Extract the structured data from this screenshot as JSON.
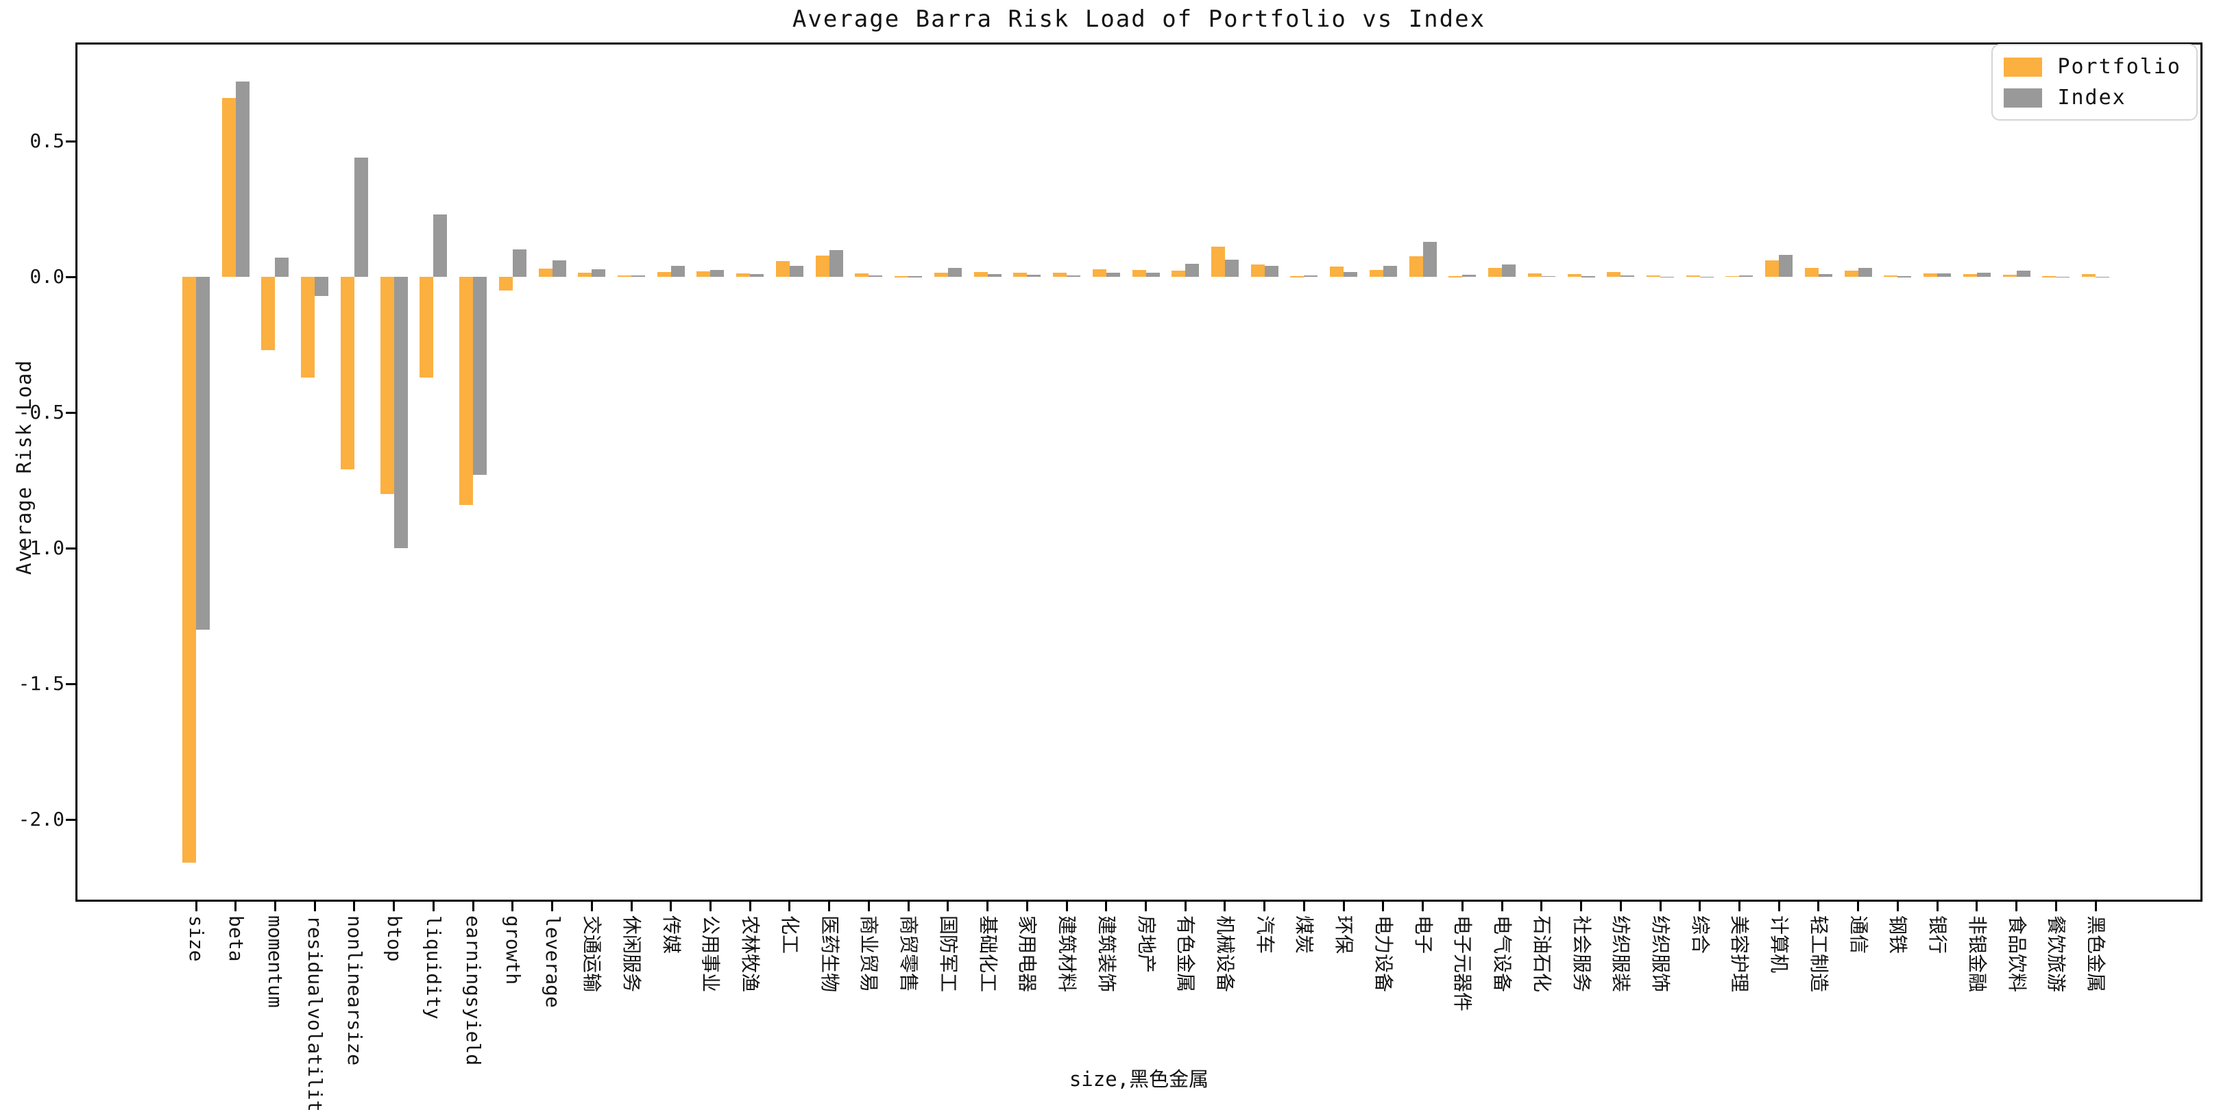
{
  "title": "Average Barra Risk Load of Portfolio vs Index",
  "legend": {
    "items": [
      {
        "label": "Portfolio",
        "color": "#FBB040"
      },
      {
        "label": "Index",
        "color": "#999999"
      }
    ]
  },
  "chart_data": {
    "type": "bar",
    "title": "Average Barra Risk Load of Portfolio vs Index",
    "xlabel": "size,黑色金属",
    "ylabel": "Average Risk Load",
    "ylim": [
      -2.3,
      0.865
    ],
    "grid": false,
    "legend_position": "upper right",
    "yticks": [
      {
        "v": 0.5,
        "label": "0.5"
      },
      {
        "v": 0.0,
        "label": "0.0"
      },
      {
        "v": -0.5,
        "label": "-0.5"
      },
      {
        "v": -1.0,
        "label": "-1.0"
      },
      {
        "v": -1.5,
        "label": "-1.5"
      },
      {
        "v": -2.0,
        "label": "-2.0"
      }
    ],
    "categories": [
      "size",
      "beta",
      "momentum",
      "residualvolatility",
      "nonlinearsize",
      "btop",
      "liquidity",
      "earningsyield",
      "growth",
      "leverage",
      "交通运输",
      "休闲服务",
      "传媒",
      "公用事业",
      "农林牧渔",
      "化工",
      "医药生物",
      "商业贸易",
      "商贸零售",
      "国防军工",
      "基础化工",
      "家用电器",
      "建筑材料",
      "建筑装饰",
      "房地产",
      "有色金属",
      "机械设备",
      "汽车",
      "煤炭",
      "环保",
      "电力设备",
      "电子",
      "电子元器件",
      "电气设备",
      "石油石化",
      "社会服务",
      "纺织服装",
      "纺织服饰",
      "综合",
      "美容护理",
      "计算机",
      "轻工制造",
      "通信",
      "钢铁",
      "银行",
      "非银金融",
      "食品饮料",
      "餐饮旅游",
      "黑色金属"
    ],
    "series": [
      {
        "name": "Portfolio",
        "color": "#FBB040",
        "values": [
          -2.16,
          0.66,
          -0.27,
          -0.37,
          -0.71,
          -0.8,
          -0.37,
          -0.84,
          -0.05,
          0.03,
          0.016,
          0.005,
          0.017,
          0.019,
          0.012,
          0.058,
          0.078,
          0.013,
          0.002,
          0.016,
          0.018,
          0.016,
          0.015,
          0.027,
          0.025,
          0.022,
          0.11,
          0.046,
          0.002,
          0.037,
          0.026,
          0.076,
          0.002,
          0.034,
          0.012,
          0.01,
          0.017,
          0.004,
          0.005,
          0.003,
          0.061,
          0.033,
          0.022,
          0.004,
          0.012,
          0.01,
          0.008,
          0.002,
          0.01
        ]
      },
      {
        "name": "Index",
        "color": "#999999",
        "values": [
          -1.3,
          0.72,
          0.07,
          -0.07,
          0.44,
          -1.0,
          0.23,
          -0.73,
          0.1,
          0.06,
          0.028,
          0.005,
          0.04,
          0.025,
          0.011,
          0.041,
          0.098,
          0.005,
          0.002,
          0.032,
          0.01,
          0.008,
          0.006,
          0.015,
          0.016,
          0.049,
          0.062,
          0.041,
          0.006,
          0.017,
          0.04,
          0.13,
          0.008,
          0.045,
          0.003,
          0.002,
          0.006,
          0.001,
          0.001,
          0.004,
          0.08,
          0.009,
          0.033,
          0.002,
          0.013,
          0.016,
          0.022,
          0.001,
          0.001
        ]
      }
    ]
  }
}
